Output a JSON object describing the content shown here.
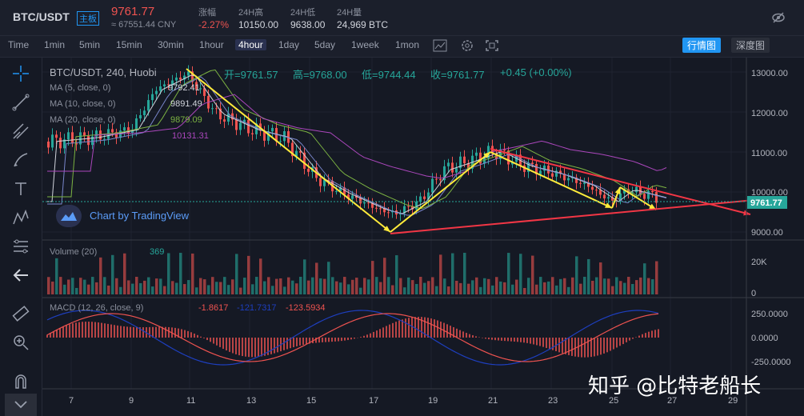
{
  "header": {
    "symbol": "BTC/USDT",
    "main_badge": "主板",
    "price": "9761.77",
    "price_cny": "≈ 67551.44 CNY",
    "change_label": "涨幅",
    "change_value": "-2.27%",
    "high_label": "24H高",
    "high_value": "10150.00",
    "low_label": "24H低",
    "low_value": "9638.00",
    "vol_label": "24H量",
    "vol_value": "24,969 BTC"
  },
  "toolbar": {
    "timeframes": [
      "Time",
      "1min",
      "5min",
      "15min",
      "30min",
      "1hour",
      "4hour",
      "1day",
      "5day",
      "1week",
      "1mon"
    ],
    "active": "4hour",
    "market_btn": "行情图",
    "depth_btn": "深度图"
  },
  "legend": {
    "title": "BTC/USDT, 240, Huobi",
    "open": "开=9761.57",
    "high": "高=9768.00",
    "low": "低=9744.44",
    "close": "收=9761.77",
    "change": "+0.45 (+0.00%)",
    "ma5": "MA (5, close, 0)",
    "ma5_val": "9792.41",
    "ma10": "MA (10, close, 0)",
    "ma10_val": "9891.49",
    "ma20": "MA (20, close, 0)",
    "ma20_val": "9879.09",
    "ma60_val": "10131.31",
    "tradingview": "Chart by TradingView"
  },
  "price_axis": [
    "13000.00",
    "12000.00",
    "11000.00",
    "10000.00",
    "9000.00"
  ],
  "price_tag": "9761.77",
  "volume": {
    "label": "Volume (20)",
    "value": "369",
    "axis": [
      "20K",
      "0"
    ]
  },
  "macd": {
    "label": "MACD (12, 26, close, 9)",
    "v1": "-1.8617",
    "v2": "-121.7317",
    "v3": "-123.5934",
    "axis": [
      "250.0000",
      "0.0000",
      "-250.0000"
    ]
  },
  "x_axis": [
    "7",
    "9",
    "11",
    "13",
    "15",
    "17",
    "19",
    "21",
    "23",
    "25",
    "27",
    "29"
  ],
  "watermark": "知乎 @比特老船长",
  "colors": {
    "up": "#26a69a",
    "down": "#ef5350",
    "accent": "#2196f3",
    "trend_yellow": "#ffeb3b",
    "trend_red": "#f23645"
  }
}
